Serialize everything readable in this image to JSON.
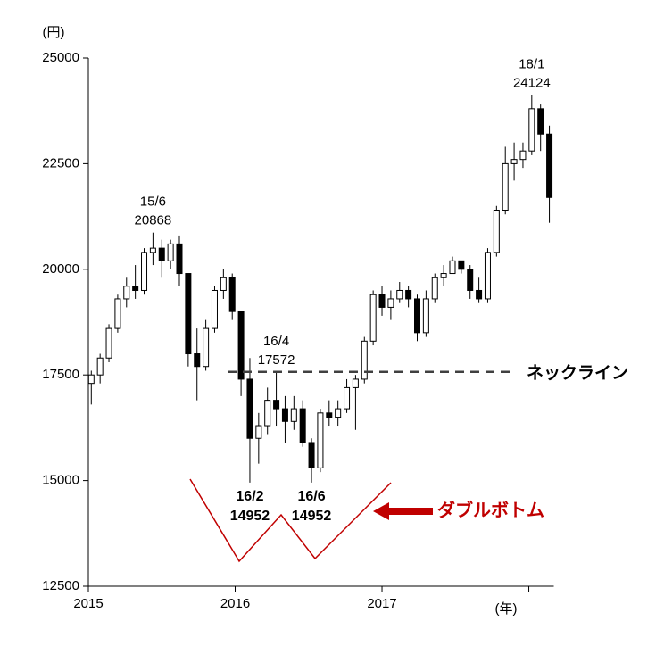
{
  "chart_data": {
    "type": "candlestick",
    "y_unit_label": "(円)",
    "x_unit_label": "(年)",
    "xlim": [
      2015,
      2018.17
    ],
    "ylim": [
      12500,
      25000
    ],
    "xticks": [
      2015,
      2016,
      2017
    ],
    "xtick_marks": [
      2015,
      2016,
      2017,
      2018
    ],
    "yticks": [
      12500,
      15000,
      17500,
      20000,
      22500,
      25000
    ],
    "up_color": "#ffffff",
    "down_color": "#000000",
    "x": [
      2015.02,
      2015.08,
      2015.14,
      2015.2,
      2015.26,
      2015.32,
      2015.38,
      2015.44,
      2015.5,
      2015.56,
      2015.62,
      2015.68,
      2015.74,
      2015.8,
      2015.86,
      2015.92,
      2015.98,
      2016.04,
      2016.1,
      2016.16,
      2016.22,
      2016.28,
      2016.34,
      2016.4,
      2016.46,
      2016.52,
      2016.58,
      2016.64,
      2016.7,
      2016.76,
      2016.82,
      2016.88,
      2016.94,
      2017.0,
      2017.06,
      2017.12,
      2017.18,
      2017.24,
      2017.3,
      2017.36,
      2017.42,
      2017.48,
      2017.54,
      2017.6,
      2017.66,
      2017.72,
      2017.78,
      2017.84,
      2017.9,
      2017.96,
      2018.02,
      2018.08,
      2018.14
    ],
    "open": [
      17300,
      17500,
      17900,
      18600,
      19300,
      19600,
      19500,
      20400,
      20500,
      20200,
      20600,
      19900,
      18000,
      17700,
      18600,
      19500,
      19800,
      19000,
      17400,
      16000,
      16300,
      16900,
      16700,
      16400,
      16700,
      15900,
      15300,
      16600,
      16500,
      16700,
      17200,
      17400,
      18300,
      19400,
      19100,
      19300,
      19500,
      19300,
      18500,
      19300,
      19800,
      19900,
      20200,
      20000,
      19500,
      19300,
      20400,
      21400,
      22500,
      22600,
      22800,
      23800,
      23200
    ],
    "high": [
      17600,
      18000,
      18700,
      19400,
      19800,
      20100,
      20500,
      20868,
      20700,
      20700,
      20800,
      19900,
      18600,
      18800,
      19600,
      20000,
      19900,
      19000,
      17900,
      16600,
      17200,
      17572,
      17000,
      17000,
      16900,
      16000,
      16700,
      16900,
      16900,
      17400,
      17500,
      18400,
      19500,
      19600,
      19500,
      19700,
      19600,
      19400,
      19500,
      19900,
      20100,
      20300,
      20200,
      20100,
      19800,
      20500,
      21500,
      22900,
      23000,
      23000,
      24124,
      23900,
      23400
    ],
    "low": [
      16800,
      17300,
      17800,
      18500,
      19100,
      19300,
      19400,
      20100,
      19800,
      20000,
      19600,
      17700,
      16900,
      17600,
      18500,
      19300,
      18800,
      17000,
      14952,
      15400,
      16100,
      16300,
      15900,
      16200,
      15800,
      14952,
      15200,
      16300,
      16300,
      16600,
      16200,
      17300,
      18200,
      18900,
      18800,
      19200,
      19100,
      18300,
      18400,
      19200,
      19600,
      19900,
      19900,
      19300,
      19200,
      19200,
      20300,
      21300,
      22100,
      22400,
      22700,
      22800,
      21100
    ],
    "close": [
      17500,
      17900,
      18600,
      19300,
      19600,
      19500,
      20400,
      20500,
      20200,
      20600,
      19900,
      18000,
      17700,
      18600,
      19500,
      19800,
      19000,
      17400,
      16000,
      16300,
      16900,
      16700,
      16400,
      16700,
      15900,
      15300,
      16600,
      16500,
      16700,
      17200,
      17400,
      18300,
      19400,
      19100,
      19300,
      19500,
      19300,
      18500,
      19300,
      19800,
      19900,
      20200,
      20000,
      19500,
      19300,
      20400,
      21400,
      22500,
      22600,
      22800,
      23800,
      23200,
      21700
    ],
    "annotations": [
      {
        "date": "15/6",
        "value": 20868,
        "x": 2015.44,
        "position": "above",
        "bold": false
      },
      {
        "date": "16/4",
        "value": 17572,
        "x": 2016.28,
        "position": "above",
        "bold": false
      },
      {
        "date": "18/1",
        "value": 24124,
        "x": 2018.02,
        "position": "above",
        "bold": false
      },
      {
        "date": "16/2",
        "value": 14952,
        "x": 2016.1,
        "position": "below",
        "bold": true
      },
      {
        "date": "16/6",
        "value": 14952,
        "x": 2016.52,
        "position": "below",
        "bold": true
      }
    ],
    "neckline": {
      "label": "ネックライン",
      "value": 17572,
      "color": "#404040"
    },
    "pattern": {
      "label": "ダブルボトム",
      "color": "#c00000"
    }
  }
}
